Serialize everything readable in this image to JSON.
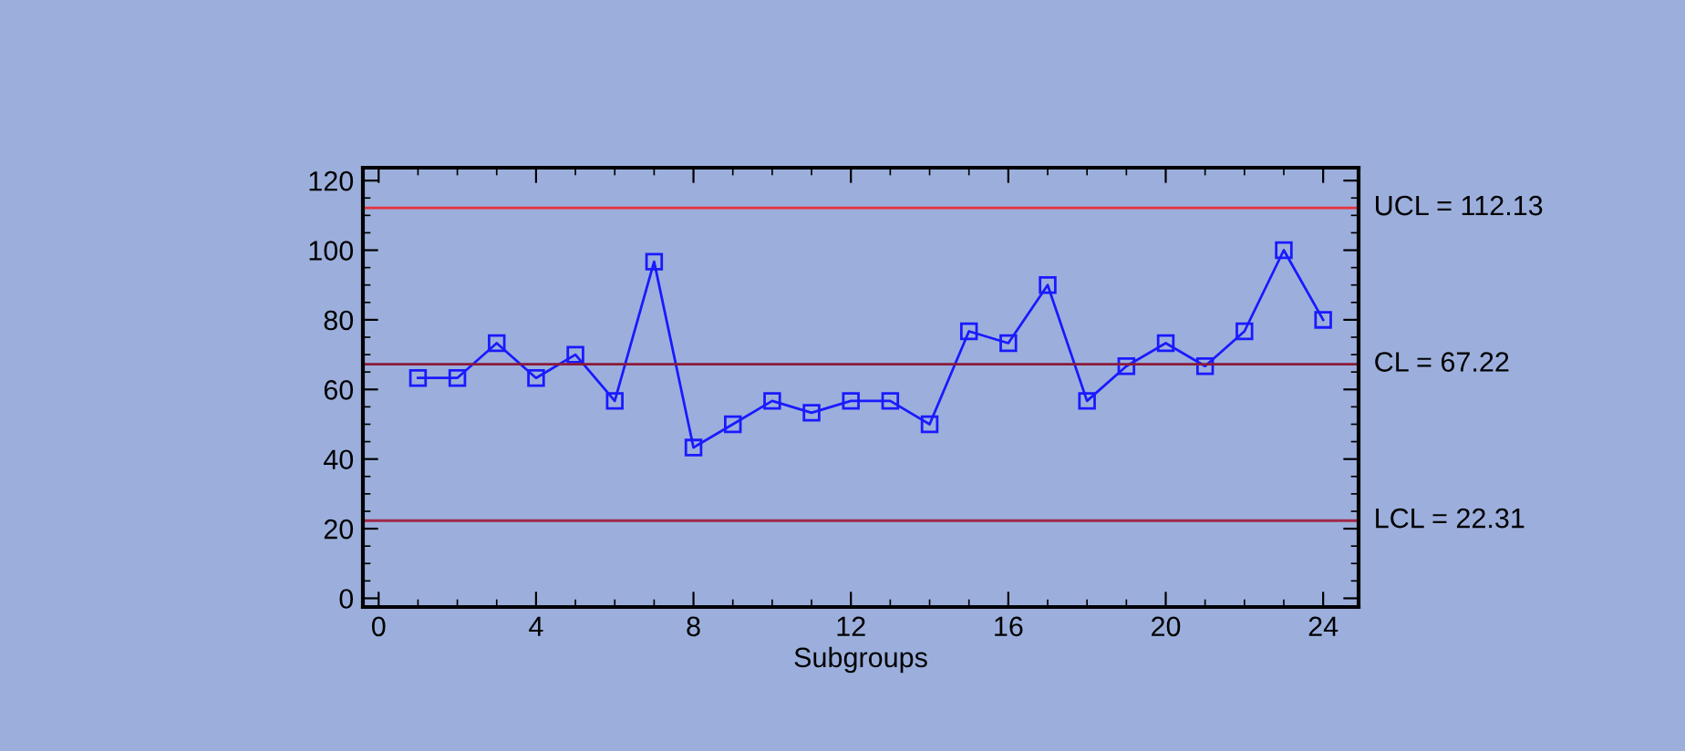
{
  "chart_data": {
    "type": "line",
    "xlabel": "Subgroups",
    "x": [
      1,
      2,
      3,
      4,
      5,
      6,
      7,
      8,
      9,
      10,
      11,
      12,
      13,
      14,
      15,
      16,
      17,
      18,
      19,
      20,
      21,
      22,
      23,
      24
    ],
    "series": [
      {
        "color": "#1a1aff",
        "values": [
          63.3,
          63.3,
          73.3,
          63.3,
          70,
          56.7,
          96.7,
          43.3,
          50,
          56.7,
          53.3,
          56.7,
          56.7,
          50,
          76.7,
          73.3,
          90,
          56.7,
          66.7,
          73.3,
          66.7,
          76.7,
          100,
          80
        ]
      }
    ],
    "marker": "square",
    "line_style": "solid",
    "grid": false,
    "legend": false,
    "xlim": [
      -0.4,
      24.9
    ],
    "ylim": [
      -2.5,
      123.7
    ],
    "xticks": [
      0,
      4,
      8,
      12,
      16,
      20,
      24
    ],
    "yticks": [
      0,
      20,
      40,
      60,
      80,
      100,
      120
    ],
    "ref_lines": [
      {
        "axis": "y",
        "value": 112.13,
        "label": "UCL = 112.13",
        "color": "#e8323c"
      },
      {
        "axis": "y",
        "value": 67.22,
        "label": "CL = 67.22",
        "color": "#8b1a3a"
      },
      {
        "axis": "y",
        "value": 22.31,
        "label": "LCL = 22.31",
        "color": "#a0284a"
      }
    ]
  }
}
